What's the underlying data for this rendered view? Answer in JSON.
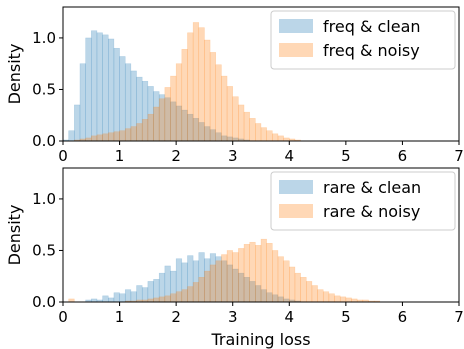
{
  "chart_data": [
    {
      "type": "bar",
      "panel": "top",
      "xlabel": "",
      "ylabel": "Density",
      "xlim": [
        0,
        7
      ],
      "ylim": [
        0,
        1.3
      ],
      "xticks": [
        "0",
        "1",
        "2",
        "3",
        "4",
        "5",
        "6",
        "7"
      ],
      "yticks": [
        "0.0",
        "0.5",
        "1.0"
      ],
      "legend_placement": "top-right",
      "bin_width": 0.1,
      "series": [
        {
          "name": "freq & clean",
          "color": "#1f77b4",
          "x_start": 0.0,
          "values": [
            0.01,
            0.1,
            0.35,
            0.75,
            1.0,
            1.07,
            1.05,
            1.03,
            0.99,
            0.9,
            0.82,
            0.75,
            0.68,
            0.62,
            0.58,
            0.53,
            0.48,
            0.45,
            0.42,
            0.38,
            0.34,
            0.3,
            0.26,
            0.22,
            0.18,
            0.14,
            0.11,
            0.08,
            0.05,
            0.04,
            0.03,
            0.02,
            0.01
          ]
        },
        {
          "name": "freq & noisy",
          "color": "#ff7f0e",
          "x_start": 0.0,
          "values": [
            0.0,
            0.0,
            0.01,
            0.02,
            0.03,
            0.05,
            0.06,
            0.07,
            0.08,
            0.09,
            0.1,
            0.12,
            0.14,
            0.17,
            0.21,
            0.26,
            0.33,
            0.41,
            0.52,
            0.63,
            0.75,
            0.89,
            1.05,
            1.15,
            1.1,
            0.98,
            0.86,
            0.74,
            0.63,
            0.53,
            0.43,
            0.35,
            0.28,
            0.22,
            0.17,
            0.13,
            0.1,
            0.07,
            0.05,
            0.03,
            0.02,
            0.01
          ]
        }
      ]
    },
    {
      "type": "bar",
      "panel": "bottom",
      "xlabel": "Training loss",
      "ylabel": "Density",
      "xlim": [
        0,
        7
      ],
      "ylim": [
        0,
        1.3
      ],
      "xticks": [
        "0",
        "1",
        "2",
        "3",
        "4",
        "5",
        "6",
        "7"
      ],
      "yticks": [
        "0.0",
        "0.5",
        "1.0"
      ],
      "legend_placement": "top-right",
      "bin_width": 0.1,
      "series": [
        {
          "name": "rare & clean",
          "color": "#1f77b4",
          "x_start": 0.4,
          "values": [
            0.02,
            0.03,
            0.02,
            0.06,
            0.04,
            0.09,
            0.08,
            0.12,
            0.1,
            0.16,
            0.14,
            0.2,
            0.22,
            0.28,
            0.35,
            0.3,
            0.42,
            0.38,
            0.45,
            0.4,
            0.48,
            0.42,
            0.47,
            0.44,
            0.4,
            0.36,
            0.32,
            0.28,
            0.24,
            0.2,
            0.16,
            0.12,
            0.09,
            0.07,
            0.05,
            0.03,
            0.02,
            0.01
          ]
        },
        {
          "name": "rare & noisy",
          "color": "#ff7f0e",
          "x_start": 0.1,
          "values": [
            0.03,
            0.0,
            0.0,
            0.0,
            0.0,
            0.0,
            0.0,
            0.0,
            0.0,
            0.0,
            0.01,
            0.01,
            0.02,
            0.02,
            0.03,
            0.04,
            0.05,
            0.06,
            0.08,
            0.1,
            0.12,
            0.15,
            0.19,
            0.24,
            0.3,
            0.36,
            0.4,
            0.46,
            0.5,
            0.48,
            0.52,
            0.56,
            0.58,
            0.55,
            0.61,
            0.57,
            0.5,
            0.44,
            0.4,
            0.34,
            0.28,
            0.24,
            0.2,
            0.16,
            0.12,
            0.1,
            0.08,
            0.06,
            0.05,
            0.04,
            0.03,
            0.02,
            0.02,
            0.01,
            0.01
          ]
        }
      ]
    }
  ]
}
